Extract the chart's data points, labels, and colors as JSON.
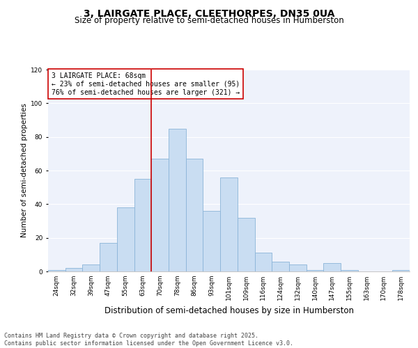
{
  "title1": "3, LAIRGATE PLACE, CLEETHORPES, DN35 0UA",
  "title2": "Size of property relative to semi-detached houses in Humberston",
  "xlabel": "Distribution of semi-detached houses by size in Humberston",
  "ylabel": "Number of semi-detached properties",
  "categories": [
    "24sqm",
    "32sqm",
    "39sqm",
    "47sqm",
    "55sqm",
    "63sqm",
    "70sqm",
    "78sqm",
    "86sqm",
    "93sqm",
    "101sqm",
    "109sqm",
    "116sqm",
    "124sqm",
    "132sqm",
    "140sqm",
    "147sqm",
    "155sqm",
    "163sqm",
    "170sqm",
    "178sqm"
  ],
  "values": [
    1,
    2,
    4,
    17,
    38,
    55,
    67,
    85,
    67,
    36,
    56,
    32,
    11,
    6,
    4,
    1,
    5,
    1,
    0,
    0,
    1
  ],
  "bar_color": "#c9ddf2",
  "bar_edge_color": "#8ab4d8",
  "vline_color": "#cc0000",
  "vline_x_index": 6,
  "box_edge_color": "#cc0000",
  "annotation_text": "3 LAIRGATE PLACE: 68sqm\n← 23% of semi-detached houses are smaller (95)\n76% of semi-detached houses are larger (321) →",
  "footnote": "Contains HM Land Registry data © Crown copyright and database right 2025.\nContains public sector information licensed under the Open Government Licence v3.0.",
  "ylim": [
    0,
    120
  ],
  "yticks": [
    0,
    20,
    40,
    60,
    80,
    100,
    120
  ],
  "bg_color": "#eef2fb",
  "grid_color": "#ffffff",
  "fig_bg_color": "#ffffff",
  "title1_fontsize": 10,
  "title2_fontsize": 8.5,
  "xlabel_fontsize": 8.5,
  "ylabel_fontsize": 7.5,
  "tick_fontsize": 6.5,
  "annotation_fontsize": 7,
  "footnote_fontsize": 6
}
